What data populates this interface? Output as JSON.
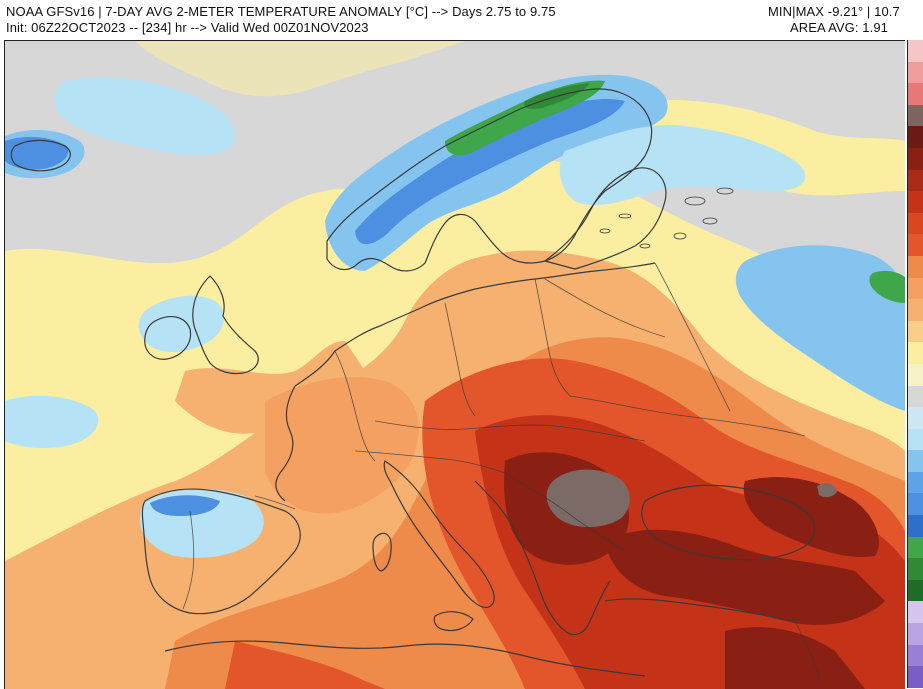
{
  "header": {
    "title_line": "NOAA GFSv16 |  7-DAY AVG 2-METER TEMPERATURE ANOMALY [°C] --> Days 2.75 to 9.75",
    "init_line": "Init: 06Z22OCT2023 -- [234] hr --> Valid Wed 00Z01NOV2023",
    "minmax_line": "MIN|MAX -9.21° | 10.7",
    "area_avg_line": "AREA AVG: 1.91"
  },
  "map": {
    "variable": "7-day average 2-meter temperature anomaly",
    "region": "Europe",
    "colors": {
      "neutral": "#d7d7d7",
      "slightly_warm": "#fbeea0",
      "warm": "#f6b070",
      "warmer": "#ee8a4a",
      "hot": "#e3552b",
      "very_hot": "#c43318",
      "extreme_hot": "#8a1f14",
      "maximum": "#7c6a66",
      "slightly_cool": "#b6e2f6",
      "cool": "#86c4f0",
      "colder": "#4d8fe0",
      "coldest": "#3fa64a",
      "coastline": "#3a3a3a"
    }
  },
  "colorbar": {
    "colors": [
      "#f4c6c6",
      "#ef9c9c",
      "#e87777",
      "#7f6460",
      "#6b1a14",
      "#8a1f14",
      "#a92a18",
      "#c43318",
      "#d9461f",
      "#e3552b",
      "#ee8a4a",
      "#f4a061",
      "#f6b070",
      "#f9cd8a",
      "#fbeea0",
      "#f7f3c8",
      "#d7d7d7",
      "#cfe7f3",
      "#b6e2f6",
      "#86c4f0",
      "#5ea3e7",
      "#4d8fe0",
      "#2f6ec9",
      "#3fa64a",
      "#2f8a38",
      "#1e6b2a",
      "#d6c6ee",
      "#b9a3e3",
      "#9a7fd6",
      "#7a5ec5"
    ]
  }
}
